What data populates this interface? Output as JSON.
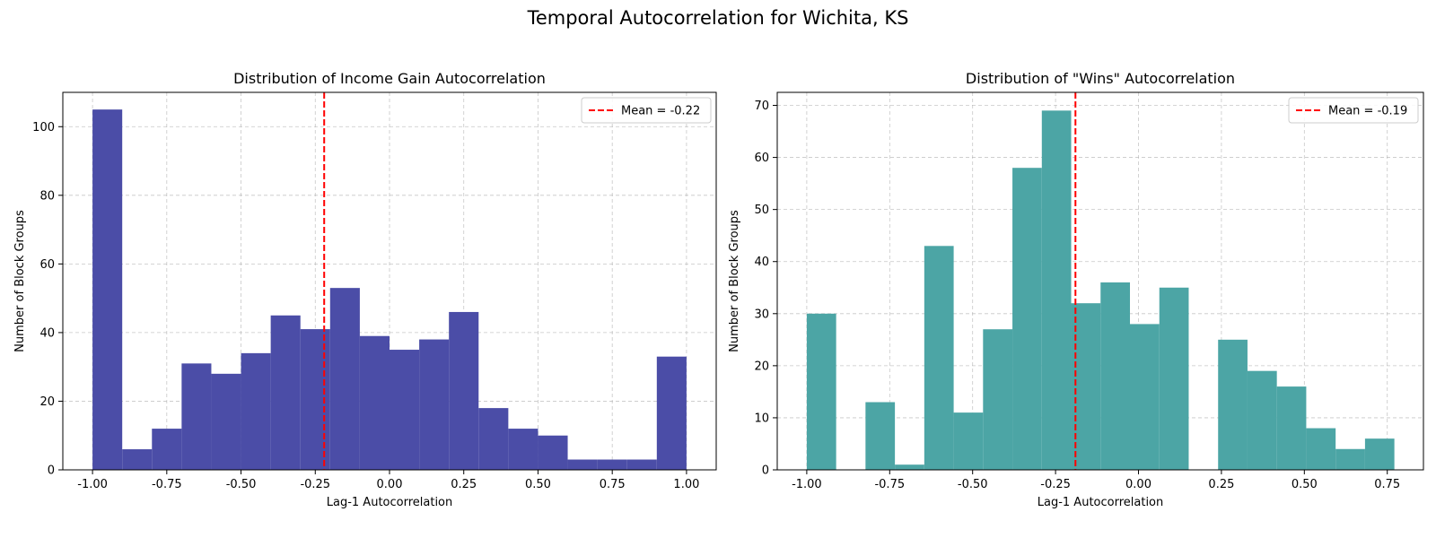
{
  "figure": {
    "suptitle": "Temporal Autocorrelation for Wichita, KS"
  },
  "chart_data": [
    {
      "type": "bar",
      "title": "Distribution of Income Gain Autocorrelation",
      "xlabel": "Lag-1 Autocorrelation",
      "ylabel": "Number of Block Groups",
      "bar_color": "#4b4da7",
      "mean": -0.22,
      "legend_label": "Mean = -0.22",
      "legend_position": "top-right",
      "grid": true,
      "xlim": [
        -1.1,
        1.1
      ],
      "ylim": [
        0,
        110
      ],
      "xticks": [
        -1.0,
        -0.75,
        -0.5,
        -0.25,
        0.0,
        0.25,
        0.5,
        0.75,
        1.0
      ],
      "xtick_labels": [
        "-1.00",
        "-0.75",
        "-0.50",
        "-0.25",
        "0.00",
        "0.25",
        "0.50",
        "0.75",
        "1.00"
      ],
      "yticks": [
        0,
        20,
        40,
        60,
        80,
        100
      ],
      "ytick_labels": [
        "0",
        "20",
        "40",
        "60",
        "80",
        "100"
      ],
      "bin_edges": [
        -1.0,
        -0.9,
        -0.8,
        -0.7,
        -0.6,
        -0.5,
        -0.4,
        -0.3,
        -0.2,
        -0.1,
        0.0,
        0.1,
        0.2,
        0.3,
        0.4,
        0.5,
        0.6,
        0.7,
        0.8,
        0.9,
        1.0
      ],
      "values": [
        105,
        6,
        12,
        31,
        28,
        34,
        45,
        41,
        53,
        39,
        35,
        38,
        46,
        18,
        12,
        10,
        3,
        3,
        3,
        33
      ]
    },
    {
      "type": "bar",
      "title": "Distribution of \"Wins\" Autocorrelation",
      "xlabel": "Lag-1 Autocorrelation",
      "ylabel": "Number of Block Groups",
      "bar_color": "#4ca5a5",
      "mean": -0.19,
      "legend_label": "Mean = -0.19",
      "legend_position": "top-right",
      "grid": true,
      "xlim": [
        -1.089,
        0.859
      ],
      "ylim": [
        0,
        72.5
      ],
      "xticks": [
        -1.0,
        -0.75,
        -0.5,
        -0.25,
        0.0,
        0.25,
        0.5,
        0.75
      ],
      "xtick_labels": [
        "-1.00",
        "-0.75",
        "-0.50",
        "-0.25",
        "0.00",
        "0.25",
        "0.50",
        "0.75"
      ],
      "yticks": [
        0,
        10,
        20,
        30,
        40,
        50,
        60,
        70
      ],
      "ytick_labels": [
        "0",
        "10",
        "20",
        "30",
        "40",
        "50",
        "60",
        "70"
      ],
      "bin_edges": [
        -1.0,
        -0.9114,
        -0.8229,
        -0.7343,
        -0.6457,
        -0.5571,
        -0.4686,
        -0.38,
        -0.2914,
        -0.2029,
        -0.1143,
        -0.0257,
        0.0629,
        0.1514,
        0.24,
        0.3286,
        0.4171,
        0.5057,
        0.5943,
        0.6829,
        0.7714
      ],
      "values": [
        30,
        0,
        13,
        1,
        43,
        11,
        27,
        58,
        69,
        32,
        36,
        28,
        35,
        0,
        25,
        19,
        16,
        8,
        4,
        6
      ]
    }
  ]
}
